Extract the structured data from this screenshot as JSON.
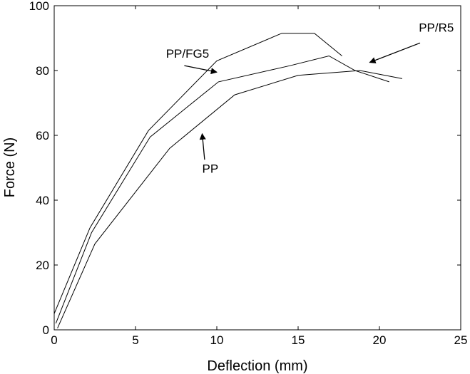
{
  "chart_data": {
    "type": "line",
    "title": "",
    "xlabel": "Deflection (mm)",
    "ylabel": "Force (N)",
    "xlim": [
      0,
      25
    ],
    "ylim": [
      0,
      100
    ],
    "xticks": [
      0,
      5,
      10,
      15,
      20,
      25
    ],
    "yticks": [
      0,
      20,
      40,
      60,
      80,
      100
    ],
    "grid": false,
    "series": [
      {
        "name": "PP/FG5",
        "points": [
          [
            0,
            5
          ],
          [
            2.2,
            31.5
          ],
          [
            5.8,
            61.5
          ],
          [
            10,
            83
          ],
          [
            14,
            91.5
          ],
          [
            16,
            91.5
          ],
          [
            17.7,
            84.5
          ]
        ]
      },
      {
        "name": "PP/R5",
        "points": [
          [
            0.1,
            2
          ],
          [
            2.3,
            30
          ],
          [
            5.9,
            59.5
          ],
          [
            10.1,
            76.5
          ],
          [
            14.5,
            81.5
          ],
          [
            16.9,
            84.5
          ],
          [
            18.5,
            80
          ],
          [
            20.6,
            76.5
          ]
        ]
      },
      {
        "name": "PP",
        "points": [
          [
            0.2,
            0.5
          ],
          [
            2.5,
            26.5
          ],
          [
            7.1,
            56
          ],
          [
            11.1,
            72.5
          ],
          [
            15,
            78.5
          ],
          [
            18.8,
            80
          ],
          [
            21.4,
            77.5
          ]
        ]
      }
    ],
    "annotations": [
      {
        "text": "PP/FG5",
        "label_at": [
          8.2,
          84
        ],
        "arrow_from": [
          8.0,
          81.5
        ],
        "arrow_to": [
          10.0,
          79.5
        ]
      },
      {
        "text": "PP/R5",
        "label_at": [
          23.5,
          92
        ],
        "arrow_from": [
          22.5,
          88.5
        ],
        "arrow_to": [
          19.4,
          82.5
        ]
      },
      {
        "text": "PP",
        "label_at": [
          9.6,
          48.5
        ],
        "arrow_from": [
          9.25,
          52.5
        ],
        "arrow_to": [
          9.1,
          60.5
        ]
      }
    ]
  }
}
